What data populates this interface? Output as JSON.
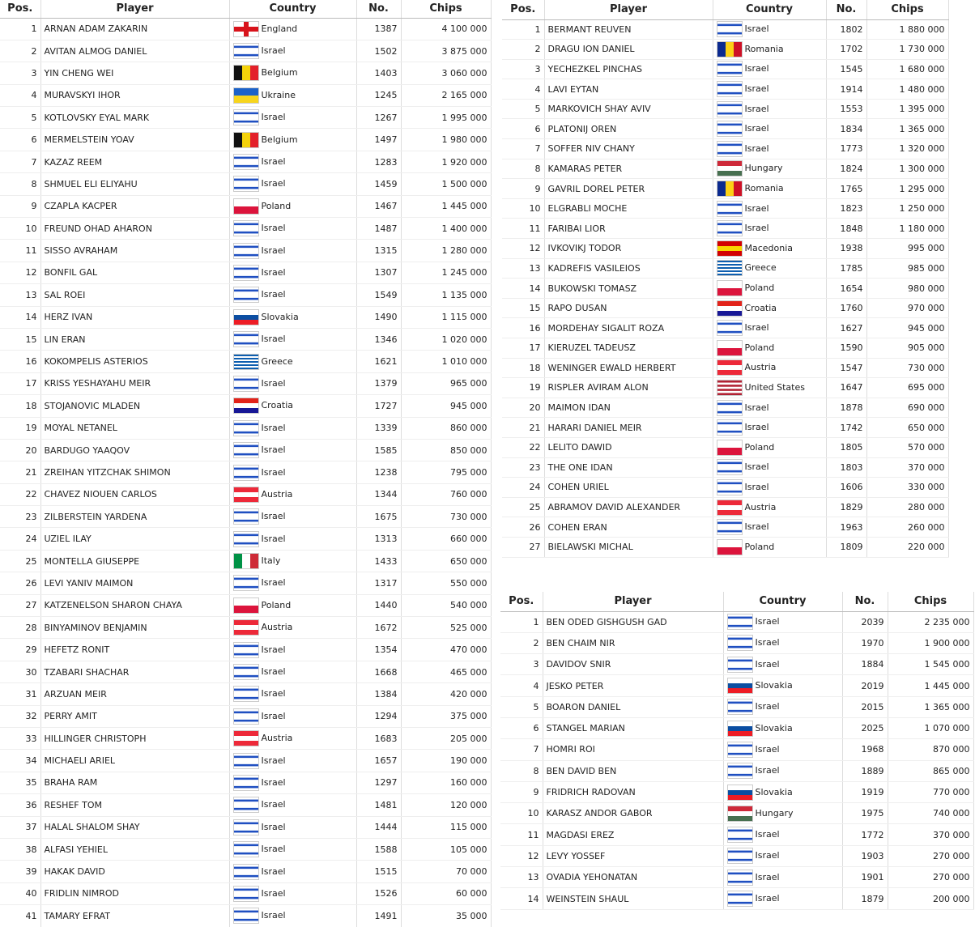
{
  "flags": {
    "England": {
      "dir": "cross",
      "colors": [
        "#ffffff",
        "#d8131b"
      ]
    },
    "Israel": {
      "dir": "h",
      "colors": [
        "#ffffff",
        "#1f4fc1",
        "#ffffff",
        "#ffffff",
        "#ffffff",
        "#1f4fc1",
        "#ffffff"
      ]
    },
    "Belgium": {
      "dir": "v",
      "colors": [
        "#111111",
        "#f5d20a",
        "#e3202a"
      ]
    },
    "Ukraine": {
      "dir": "h",
      "colors": [
        "#1b62c9",
        "#f7d51d"
      ]
    },
    "Poland": {
      "dir": "h",
      "colors": [
        "#ffffff",
        "#dc143c"
      ]
    },
    "Slovakia": {
      "dir": "h",
      "colors": [
        "#ffffff",
        "#0b4ea2",
        "#ee1c25"
      ]
    },
    "Greece": {
      "dir": "h",
      "colors": [
        "#0d5eaf",
        "#ffffff",
        "#0d5eaf",
        "#ffffff",
        "#0d5eaf",
        "#ffffff",
        "#0d5eaf",
        "#ffffff",
        "#0d5eaf"
      ]
    },
    "Croatia": {
      "dir": "h",
      "colors": [
        "#e2231a",
        "#ffffff",
        "#171796"
      ]
    },
    "Austria": {
      "dir": "h",
      "colors": [
        "#ed2939",
        "#ffffff",
        "#ed2939"
      ]
    },
    "Italy": {
      "dir": "v",
      "colors": [
        "#009246",
        "#ffffff",
        "#ce2b37"
      ]
    },
    "Romania": {
      "dir": "v",
      "colors": [
        "#0b2a8f",
        "#fcd116",
        "#ce1126"
      ]
    },
    "Hungary": {
      "dir": "h",
      "colors": [
        "#ce2939",
        "#ffffff",
        "#477050"
      ]
    },
    "Macedonia": {
      "dir": "h",
      "colors": [
        "#d20000",
        "#f8d500",
        "#d20000"
      ]
    },
    "United States": {
      "dir": "h",
      "colors": [
        "#b22234",
        "#ffffff",
        "#b22234",
        "#ffffff",
        "#b22234",
        "#ffffff",
        "#b22234"
      ]
    }
  },
  "tables": [
    {
      "headers": [
        "Pos.",
        "Player",
        "Country",
        "No.",
        "Chips"
      ],
      "rows": [
        [
          1,
          "ARNAN ADAM ZAKARIN",
          "England",
          1387,
          "4 100 000"
        ],
        [
          2,
          "AVITAN ALMOG DANIEL",
          "Israel",
          1502,
          "3 875 000"
        ],
        [
          3,
          "YIN CHENG WEI",
          "Belgium",
          1403,
          "3 060 000"
        ],
        [
          4,
          "MURAVSKYI IHOR",
          "Ukraine",
          1245,
          "2 165 000"
        ],
        [
          5,
          "KOTLOVSKY EYAL MARK",
          "Israel",
          1267,
          "1 995 000"
        ],
        [
          6,
          "MERMELSTEIN YOAV",
          "Belgium",
          1497,
          "1 980 000"
        ],
        [
          7,
          "KAZAZ REEM",
          "Israel",
          1283,
          "1 920 000"
        ],
        [
          8,
          "SHMUEL ELI ELIYAHU",
          "Israel",
          1459,
          "1 500 000"
        ],
        [
          9,
          "CZAPLA KACPER",
          "Poland",
          1467,
          "1 445 000"
        ],
        [
          10,
          "FREUND OHAD AHARON",
          "Israel",
          1487,
          "1 400 000"
        ],
        [
          11,
          "SISSO AVRAHAM",
          "Israel",
          1315,
          "1 280 000"
        ],
        [
          12,
          "BONFIL GAL",
          "Israel",
          1307,
          "1 245 000"
        ],
        [
          13,
          "SAL ROEI",
          "Israel",
          1549,
          "1 135 000"
        ],
        [
          14,
          "HERZ IVAN",
          "Slovakia",
          1490,
          "1 115 000"
        ],
        [
          15,
          "LIN ERAN",
          "Israel",
          1346,
          "1 020 000"
        ],
        [
          16,
          "KOKOMPELIS ASTERIOS",
          "Greece",
          1621,
          "1 010 000"
        ],
        [
          17,
          "KRISS YESHAYAHU MEIR",
          "Israel",
          1379,
          "965 000"
        ],
        [
          18,
          "STOJANOVIC MLADEN",
          "Croatia",
          1727,
          "945 000"
        ],
        [
          19,
          "MOYAL NETANEL",
          "Israel",
          1339,
          "860 000"
        ],
        [
          20,
          "BARDUGO YAAQOV",
          "Israel",
          1585,
          "850 000"
        ],
        [
          21,
          "ZREIHAN YITZCHAK SHIMON",
          "Israel",
          1238,
          "795 000"
        ],
        [
          22,
          "CHAVEZ NIOUEN CARLOS",
          "Austria",
          1344,
          "760 000"
        ],
        [
          23,
          "ZILBERSTEIN YARDENA",
          "Israel",
          1675,
          "730 000"
        ],
        [
          24,
          "UZIEL ILAY",
          "Israel",
          1313,
          "660 000"
        ],
        [
          25,
          "MONTELLA GIUSEPPE",
          "Italy",
          1433,
          "650 000"
        ],
        [
          26,
          "LEVI YANIV MAIMON",
          "Israel",
          1317,
          "550 000"
        ],
        [
          27,
          "KATZENELSON SHARON CHAYA",
          "Poland",
          1440,
          "540 000"
        ],
        [
          28,
          "BINYAMINOV BENJAMIN",
          "Austria",
          1672,
          "525 000"
        ],
        [
          29,
          "HEFETZ RONIT",
          "Israel",
          1354,
          "470 000"
        ],
        [
          30,
          "TZABARI SHACHAR",
          "Israel",
          1668,
          "465 000"
        ],
        [
          31,
          "ARZUAN MEIR",
          "Israel",
          1384,
          "420 000"
        ],
        [
          32,
          "PERRY AMIT",
          "Israel",
          1294,
          "375 000"
        ],
        [
          33,
          "HILLINGER CHRISTOPH",
          "Austria",
          1683,
          "205 000"
        ],
        [
          34,
          "MICHAELI ARIEL",
          "Israel",
          1657,
          "190 000"
        ],
        [
          35,
          "BRAHA RAM",
          "Israel",
          1297,
          "160 000"
        ],
        [
          36,
          "RESHEF TOM",
          "Israel",
          1481,
          "120 000"
        ],
        [
          37,
          "HALAL SHALOM SHAY",
          "Israel",
          1444,
          "115 000"
        ],
        [
          38,
          "ALFASI YEHIEL",
          "Israel",
          1588,
          "105 000"
        ],
        [
          39,
          "HAKAK DAVID",
          "Israel",
          1515,
          "70 000"
        ],
        [
          40,
          "FRIDLIN NIMROD",
          "Israel",
          1526,
          "60 000"
        ],
        [
          41,
          "TAMARY EFRAT",
          "Israel",
          1491,
          "35 000"
        ]
      ]
    },
    {
      "headers": [
        "Pos.",
        "Player",
        "Country",
        "No.",
        "Chips"
      ],
      "rows": [
        [
          1,
          "BERMANT REUVEN",
          "Israel",
          1802,
          "1 880 000"
        ],
        [
          2,
          "DRAGU ION DANIEL",
          "Romania",
          1702,
          "1 730 000"
        ],
        [
          3,
          "YECHEZKEL PINCHAS",
          "Israel",
          1545,
          "1 680 000"
        ],
        [
          4,
          "LAVI EYTAN",
          "Israel",
          1914,
          "1 480 000"
        ],
        [
          5,
          "MARKOVICH SHAY AVIV",
          "Israel",
          1553,
          "1 395 000"
        ],
        [
          6,
          "PLATONIJ OREN",
          "Israel",
          1834,
          "1 365 000"
        ],
        [
          7,
          "SOFFER NIV CHANY",
          "Israel",
          1773,
          "1 320 000"
        ],
        [
          8,
          "KAMARAS PETER",
          "Hungary",
          1824,
          "1 300 000"
        ],
        [
          9,
          "GAVRIL DOREL PETER",
          "Romania",
          1765,
          "1 295 000"
        ],
        [
          10,
          "ELGRABLI MOCHE",
          "Israel",
          1823,
          "1 250 000"
        ],
        [
          11,
          "FARIBAI LIOR",
          "Israel",
          1848,
          "1 180 000"
        ],
        [
          12,
          "IVKOVIKJ TODOR",
          "Macedonia",
          1938,
          "995 000"
        ],
        [
          13,
          "KADREFIS VASILEIOS",
          "Greece",
          1785,
          "985 000"
        ],
        [
          14,
          "BUKOWSKI TOMASZ",
          "Poland",
          1654,
          "980 000"
        ],
        [
          15,
          "RAPO DUSAN",
          "Croatia",
          1760,
          "970 000"
        ],
        [
          16,
          "MORDEHAY SIGALIT ROZA",
          "Israel",
          1627,
          "945 000"
        ],
        [
          17,
          "KIERUZEL TADEUSZ",
          "Poland",
          1590,
          "905 000"
        ],
        [
          18,
          "WENINGER EWALD HERBERT",
          "Austria",
          1547,
          "730 000"
        ],
        [
          19,
          "RISPLER AVIRAM ALON",
          "United States",
          1647,
          "695 000"
        ],
        [
          20,
          "MAIMON IDAN",
          "Israel",
          1878,
          "690 000"
        ],
        [
          21,
          "HARARI DANIEL MEIR",
          "Israel",
          1742,
          "650 000"
        ],
        [
          22,
          "LELITO DAWID",
          "Poland",
          1805,
          "570 000"
        ],
        [
          23,
          "THE ONE IDAN",
          "Israel",
          1803,
          "370 000"
        ],
        [
          24,
          "COHEN URIEL",
          "Israel",
          1606,
          "330 000"
        ],
        [
          25,
          "ABRAMOV DAVID ALEXANDER",
          "Austria",
          1829,
          "280 000"
        ],
        [
          26,
          "COHEN ERAN",
          "Israel",
          1963,
          "260 000"
        ],
        [
          27,
          "BIELAWSKI MICHAL",
          "Poland",
          1809,
          "220 000"
        ]
      ]
    },
    {
      "headers": [
        "Pos.",
        "Player",
        "Country",
        "No.",
        "Chips"
      ],
      "rows": [
        [
          1,
          "BEN ODED GISHGUSH GAD",
          "Israel",
          2039,
          "2 235 000"
        ],
        [
          2,
          "BEN CHAIM NIR",
          "Israel",
          1970,
          "1 900 000"
        ],
        [
          3,
          "DAVIDOV SNIR",
          "Israel",
          1884,
          "1 545 000"
        ],
        [
          4,
          "JESKO PETER",
          "Slovakia",
          2019,
          "1 445 000"
        ],
        [
          5,
          "BOARON DANIEL",
          "Israel",
          2015,
          "1 365 000"
        ],
        [
          6,
          "STANGEL MARIAN",
          "Slovakia",
          2025,
          "1 070 000"
        ],
        [
          7,
          "HOMRI ROI",
          "Israel",
          1968,
          "870 000"
        ],
        [
          8,
          "BEN DAVID BEN",
          "Israel",
          1889,
          "865 000"
        ],
        [
          9,
          "FRIDRICH RADOVAN",
          "Slovakia",
          1919,
          "770 000"
        ],
        [
          10,
          "KARASZ ANDOR GABOR",
          "Hungary",
          1975,
          "740 000"
        ],
        [
          11,
          "MAGDASI EREZ",
          "Israel",
          1772,
          "370 000"
        ],
        [
          12,
          "LEVY YOSSEF",
          "Israel",
          1903,
          "270 000"
        ],
        [
          13,
          "OVADIA YEHONATAN",
          "Israel",
          1901,
          "270 000"
        ],
        [
          14,
          "WEINSTEIN SHAUL",
          "Israel",
          1879,
          "200 000"
        ]
      ]
    }
  ]
}
